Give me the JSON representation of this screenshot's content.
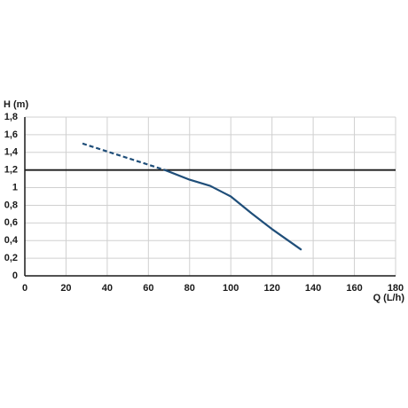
{
  "chart_data": {
    "type": "line",
    "ylabel": "H (m)",
    "xlabel": "Q (L/h)",
    "xlim": [
      0,
      180
    ],
    "xticks": [
      0,
      20,
      40,
      60,
      80,
      100,
      120,
      140,
      160,
      180
    ],
    "ylim": [
      0,
      1.8
    ],
    "yticks": [
      0,
      {
        "value": 0.2,
        "label": "0,2"
      },
      {
        "value": 0.4,
        "label": "0,4"
      },
      {
        "value": 0.6,
        "label": "0,6"
      },
      {
        "value": 0.8,
        "label": "0,8"
      },
      1,
      {
        "value": 1.2,
        "label": "1,2"
      },
      {
        "value": 1.4,
        "label": "1,4"
      },
      {
        "value": 1.6,
        "label": "1,6"
      },
      {
        "value": 1.8,
        "label": "1,8"
      }
    ],
    "grid": true,
    "hline": {
      "value": 1.2,
      "color": "#1a1a1a"
    },
    "series": [
      {
        "color": "#1f4e79",
        "dashed": true,
        "x": [
          28,
          68
        ],
        "values": [
          1.5,
          1.2
        ]
      },
      {
        "color": "#1f4e79",
        "dashed": false,
        "x": [
          68,
          80,
          90,
          100,
          110,
          120,
          134
        ],
        "values": [
          1.2,
          1.09,
          1.02,
          0.9,
          0.71,
          0.53,
          0.3
        ]
      }
    ]
  }
}
